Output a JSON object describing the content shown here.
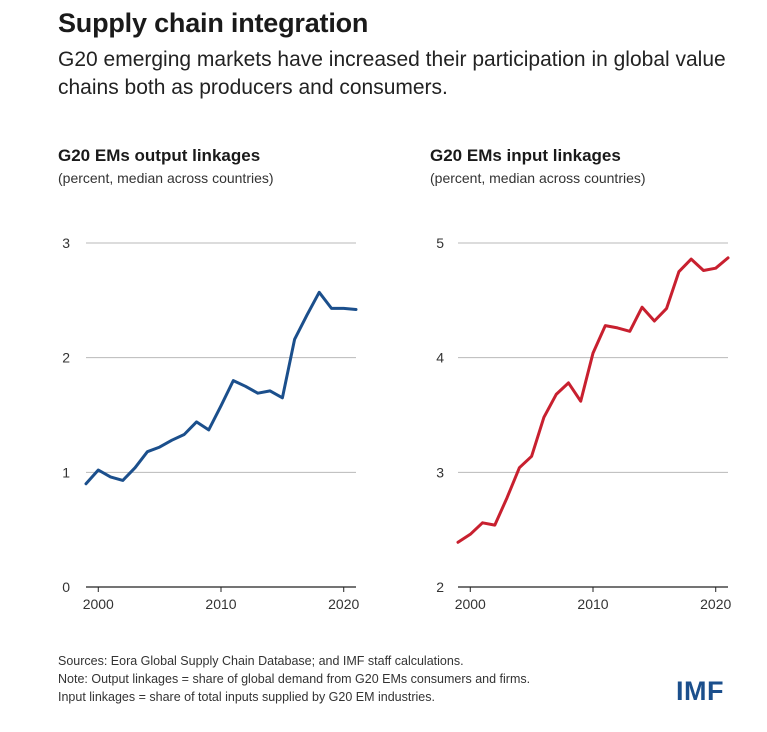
{
  "header": {
    "title": "Supply chain integration",
    "subtitle": "G20 emerging markets have increased their participation in global value chains both as producers and consumers."
  },
  "chart_data": [
    {
      "type": "line",
      "title": "G20 EMs output linkages",
      "subtitle": "(percent, median across countries)",
      "xlabel": "",
      "ylabel": "",
      "xlim": [
        1999,
        2021
      ],
      "ylim": [
        0,
        3
      ],
      "xticks": [
        2000,
        2010,
        2020
      ],
      "yticks": [
        0,
        1,
        2,
        3
      ],
      "grid": true,
      "color": "#1b4f8c",
      "x": [
        1999,
        2000,
        2001,
        2002,
        2003,
        2004,
        2005,
        2006,
        2007,
        2008,
        2009,
        2010,
        2011,
        2012,
        2013,
        2014,
        2015,
        2016,
        2017,
        2018,
        2019,
        2020,
        2021
      ],
      "values": [
        0.9,
        1.02,
        0.96,
        0.93,
        1.04,
        1.18,
        1.22,
        1.28,
        1.33,
        1.44,
        1.37,
        1.58,
        1.8,
        1.75,
        1.69,
        1.71,
        1.65,
        2.16,
        2.37,
        2.57,
        2.43,
        2.43,
        2.42
      ]
    },
    {
      "type": "line",
      "title": "G20 EMs input linkages",
      "subtitle": "(percent, median across countries)",
      "xlabel": "",
      "ylabel": "",
      "xlim": [
        1999,
        2021
      ],
      "ylim": [
        2,
        5
      ],
      "xticks": [
        2000,
        2010,
        2020
      ],
      "yticks": [
        2,
        3,
        4,
        5
      ],
      "grid": true,
      "color": "#c8202f",
      "x": [
        1999,
        2000,
        2001,
        2002,
        2003,
        2004,
        2005,
        2006,
        2007,
        2008,
        2009,
        2010,
        2011,
        2012,
        2013,
        2014,
        2015,
        2016,
        2017,
        2018,
        2019,
        2020,
        2021
      ],
      "values": [
        2.39,
        2.46,
        2.56,
        2.54,
        2.78,
        3.04,
        3.14,
        3.48,
        3.68,
        3.78,
        3.62,
        4.04,
        4.28,
        4.26,
        4.23,
        4.44,
        4.32,
        4.43,
        4.75,
        4.86,
        4.76,
        4.78,
        4.87
      ]
    }
  ],
  "notes": {
    "sources": "Sources: Eora Global Supply Chain Database; and IMF staff calculations.",
    "note1": "Note: Output linkages = share of global demand from G20 EMs consumers and firms.",
    "note2": "Input linkages = share of total inputs supplied by G20 EM industries."
  },
  "logo": {
    "text": "IMF",
    "color": "#1b4f8c"
  }
}
